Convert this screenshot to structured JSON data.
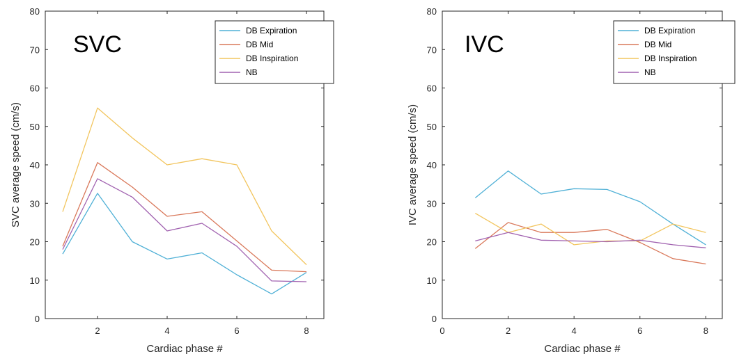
{
  "chart_data": [
    {
      "type": "line",
      "title": "SVC",
      "xlabel": "Cardiac phase #",
      "ylabel": "SVC average speed (cm/s)",
      "xlim": [
        0.5,
        8.5
      ],
      "ylim": [
        0,
        80
      ],
      "xticks": [
        "2",
        "4",
        "6",
        "8"
      ],
      "yticks": [
        "0",
        "10",
        "20",
        "30",
        "40",
        "50",
        "60",
        "70",
        "80"
      ],
      "legend_position": "top-right",
      "grid": false,
      "x": [
        1,
        2,
        3,
        4,
        5,
        6,
        7,
        8
      ],
      "series": [
        {
          "name": "DB Expiration",
          "color": "#4fb0d6",
          "values": [
            16.8,
            32.6,
            20.0,
            15.5,
            17.1,
            11.4,
            6.4,
            12.0
          ]
        },
        {
          "name": "DB Mid",
          "color": "#d9785a",
          "values": [
            18.8,
            40.6,
            34.2,
            26.6,
            27.8,
            20.2,
            12.6,
            12.2
          ]
        },
        {
          "name": "DB Inspiration",
          "color": "#f2c55e",
          "values": [
            27.8,
            54.8,
            47.0,
            40.0,
            41.6,
            40.0,
            22.8,
            14.0
          ]
        },
        {
          "name": "NB",
          "color": "#a162b0",
          "values": [
            18.0,
            36.4,
            31.6,
            22.8,
            24.8,
            18.8,
            9.8,
            9.6
          ]
        }
      ]
    },
    {
      "type": "line",
      "title": "IVC",
      "xlabel": "Cardiac phase #",
      "ylabel": "IVC average speed (cm/s)",
      "xlim": [
        0,
        8.5
      ],
      "ylim": [
        0,
        80
      ],
      "xticks": [
        "0",
        "2",
        "4",
        "6",
        "8"
      ],
      "yticks": [
        "0",
        "10",
        "20",
        "30",
        "40",
        "50",
        "60",
        "70",
        "80"
      ],
      "legend_position": "top-right",
      "grid": false,
      "x": [
        1,
        2,
        3,
        4,
        5,
        6,
        7,
        8
      ],
      "series": [
        {
          "name": "DB Expiration",
          "color": "#4fb0d6",
          "values": [
            31.4,
            38.4,
            32.4,
            33.8,
            33.6,
            30.4,
            24.6,
            19.2
          ]
        },
        {
          "name": "DB Mid",
          "color": "#d9785a",
          "values": [
            18.2,
            25.0,
            22.4,
            22.4,
            23.2,
            19.8,
            15.6,
            14.2
          ]
        },
        {
          "name": "DB Inspiration",
          "color": "#f2c55e",
          "values": [
            27.4,
            22.4,
            24.6,
            19.2,
            20.2,
            20.2,
            24.6,
            22.4
          ]
        },
        {
          "name": "NB",
          "color": "#a162b0",
          "values": [
            20.2,
            22.4,
            20.4,
            20.2,
            20.0,
            20.4,
            19.2,
            18.4
          ]
        }
      ]
    }
  ]
}
